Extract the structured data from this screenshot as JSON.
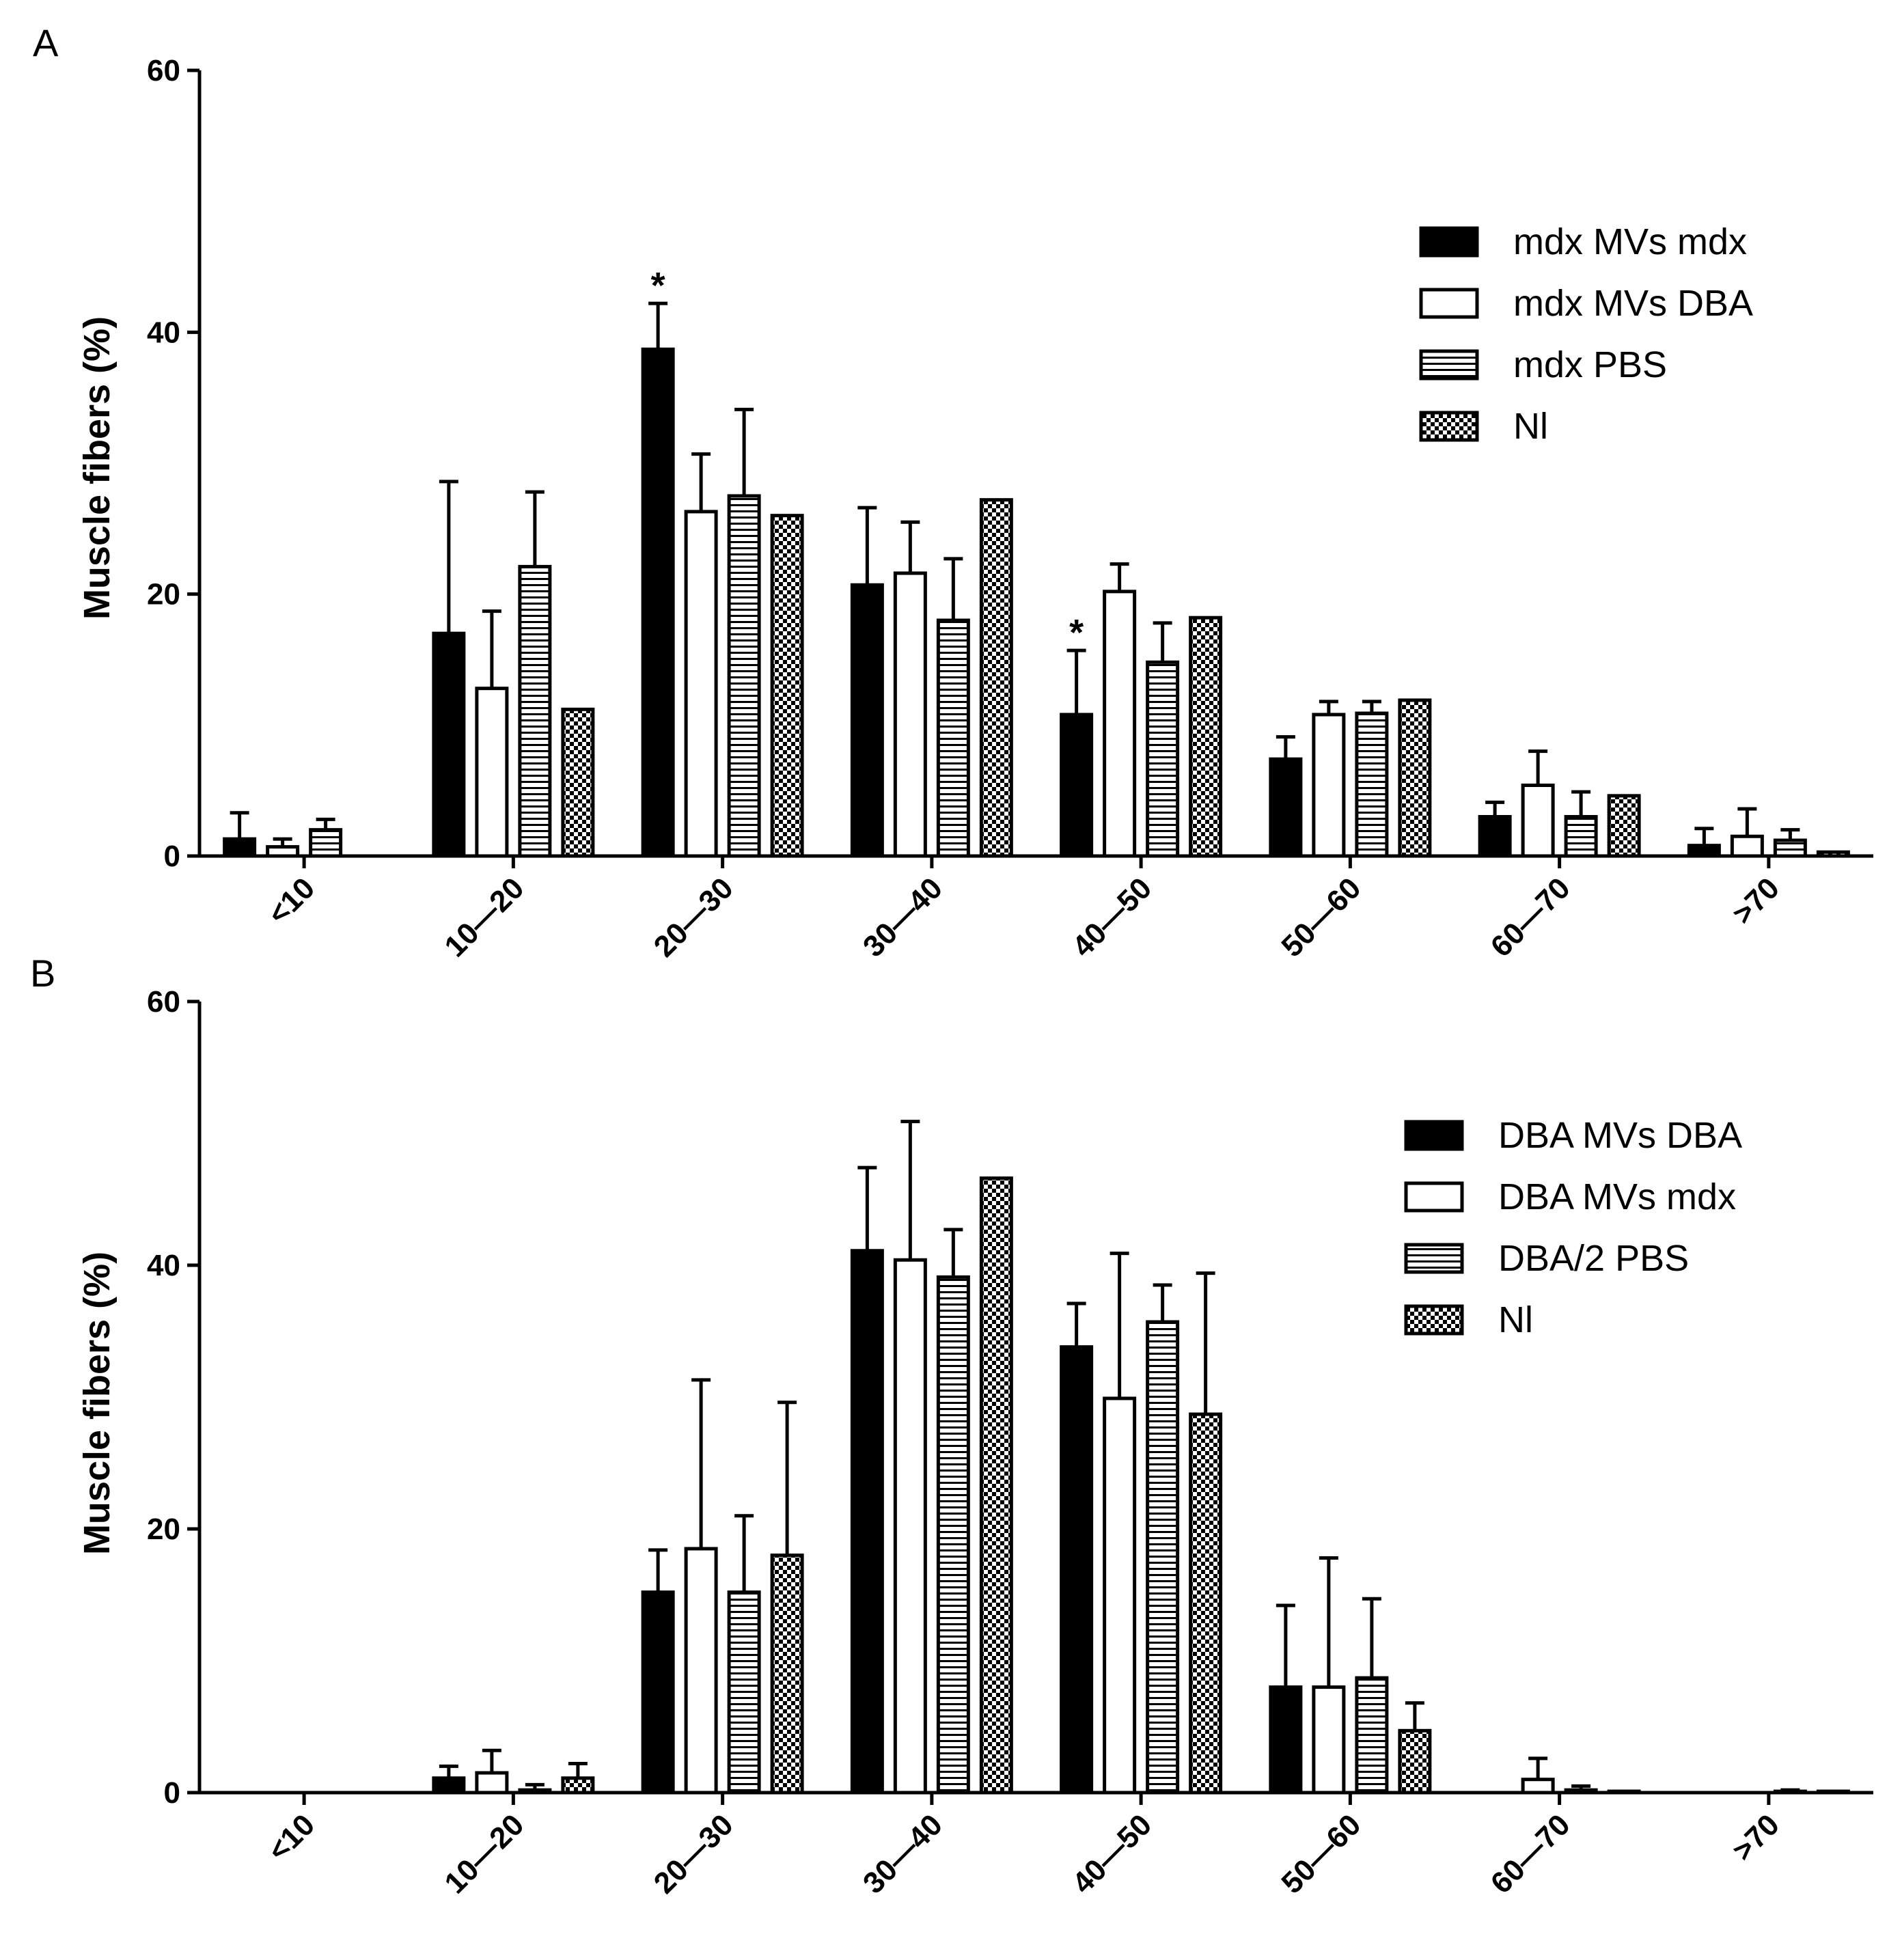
{
  "chart_data": [
    {
      "panel": "A",
      "type": "bar",
      "ylabel": "Muscle fibers (%)",
      "xlabel": "",
      "ylim": [
        0,
        60
      ],
      "yticks": [
        0,
        20,
        40,
        60
      ],
      "categories": [
        "<10",
        "10—20",
        "20—30",
        "30—40",
        "40—50",
        "50—60",
        "60—70",
        ">70"
      ],
      "legend_position": "top-right",
      "series": [
        {
          "name": "mdx MVs mdx",
          "pattern": "solid",
          "values": [
            1.3,
            17.0,
            38.7,
            20.7,
            10.8,
            7.4,
            3.0,
            0.8
          ],
          "errors": [
            2.0,
            11.6,
            3.5,
            5.9,
            4.9,
            1.7,
            1.1,
            1.3
          ]
        },
        {
          "name": "mdx MVs DBA",
          "pattern": "open",
          "values": [
            0.7,
            12.8,
            26.3,
            21.6,
            20.2,
            10.8,
            5.4,
            1.5
          ],
          "errors": [
            0.6,
            5.9,
            4.4,
            3.9,
            2.1,
            1.0,
            2.6,
            2.1
          ]
        },
        {
          "name": "mdx PBS",
          "pattern": "horizontal-lines",
          "values": [
            2.0,
            22.1,
            27.5,
            18.0,
            14.8,
            10.9,
            3.0,
            1.2
          ],
          "errors": [
            0.8,
            5.7,
            6.6,
            4.7,
            3.0,
            0.9,
            1.9,
            0.8
          ]
        },
        {
          "name": "Nl",
          "pattern": "checker",
          "values": [
            0,
            11.2,
            26.0,
            27.2,
            18.2,
            11.9,
            4.6,
            0.3
          ],
          "errors": [
            0,
            0,
            0,
            0,
            0,
            0,
            0,
            0
          ]
        }
      ],
      "annotations": [
        {
          "text": "*",
          "category": "20—30",
          "series": "mdx MVs mdx"
        },
        {
          "text": "*",
          "category": "40—50",
          "series": "mdx MVs mdx"
        }
      ]
    },
    {
      "panel": "B",
      "type": "bar",
      "ylabel": "Muscle fibers (%)",
      "xlabel": "",
      "ylim": [
        0,
        60
      ],
      "yticks": [
        0,
        20,
        40,
        60
      ],
      "categories": [
        "<10",
        "10—20",
        "20—30",
        "30—40",
        "40—50",
        "50—60",
        "60—70",
        ">70"
      ],
      "legend_position": "right",
      "series": [
        {
          "name": "DBA MVs DBA",
          "pattern": "solid",
          "values": [
            0,
            1.1,
            15.2,
            41.1,
            33.8,
            8.0,
            0,
            0
          ],
          "errors": [
            0,
            0.9,
            3.2,
            6.3,
            3.3,
            6.2,
            0,
            0
          ]
        },
        {
          "name": "DBA MVs mdx",
          "pattern": "open",
          "values": [
            0,
            1.5,
            18.5,
            40.4,
            29.9,
            8.0,
            1.0,
            0
          ],
          "errors": [
            0,
            1.7,
            12.8,
            10.5,
            11.0,
            9.8,
            1.6,
            0
          ]
        },
        {
          "name": "DBA/2 PBS",
          "pattern": "horizontal-lines",
          "values": [
            0,
            0.2,
            15.2,
            39.1,
            35.7,
            8.7,
            0.2,
            0.1
          ],
          "errors": [
            0,
            0.4,
            5.8,
            3.6,
            2.8,
            6.0,
            0.3,
            0.1
          ]
        },
        {
          "name": "Nl",
          "pattern": "checker",
          "values": [
            0,
            1.1,
            18.0,
            46.6,
            28.7,
            4.7,
            0.1,
            0.1
          ],
          "errors": [
            0,
            1.1,
            11.6,
            0,
            10.7,
            2.1,
            0,
            0
          ]
        }
      ],
      "annotations": []
    }
  ]
}
